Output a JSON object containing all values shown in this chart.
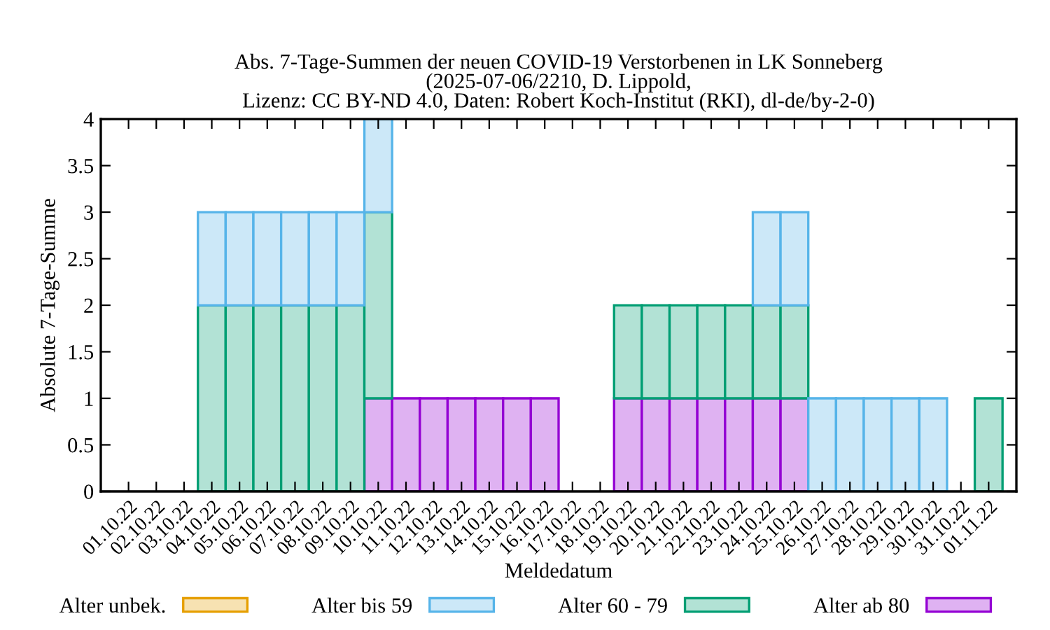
{
  "chart_data": {
    "type": "bar",
    "stacked": true,
    "title": "Abs. 7-Tage-Summen der neuen COVID-19 Verstorbenen in LK Sonneberg\n(2025-07-06/2210, D. Lippold,\nLizenz: CC BY-ND 4.0, Daten: Robert Koch-Institut (RKI), dl-de/by-2-0)",
    "xlabel": "Meldedatum",
    "ylabel": "Absolute 7-Tage-Summe",
    "categories": [
      "01.10.22",
      "02.10.22",
      "03.10.22",
      "04.10.22",
      "05.10.22",
      "06.10.22",
      "07.10.22",
      "08.10.22",
      "09.10.22",
      "10.10.22",
      "11.10.22",
      "12.10.22",
      "13.10.22",
      "14.10.22",
      "15.10.22",
      "16.10.22",
      "17.10.22",
      "18.10.22",
      "19.10.22",
      "20.10.22",
      "21.10.22",
      "22.10.22",
      "23.10.22",
      "24.10.22",
      "25.10.22",
      "26.10.22",
      "27.10.22",
      "28.10.22",
      "29.10.22",
      "30.10.22",
      "31.10.22",
      "01.11.22"
    ],
    "series": [
      {
        "name": "Alter ab 80",
        "color": "#9400d3",
        "values": [
          null,
          null,
          null,
          null,
          null,
          null,
          null,
          null,
          null,
          1,
          1,
          1,
          1,
          1,
          1,
          1,
          null,
          null,
          1,
          1,
          1,
          1,
          1,
          1,
          1,
          null,
          null,
          null,
          null,
          null,
          null,
          null
        ]
      },
      {
        "name": "Alter 60 - 79",
        "color": "#009e73",
        "values": [
          null,
          null,
          null,
          2,
          2,
          2,
          2,
          2,
          2,
          2,
          null,
          null,
          null,
          null,
          null,
          null,
          null,
          null,
          1,
          1,
          1,
          1,
          1,
          1,
          1,
          null,
          null,
          null,
          null,
          null,
          null,
          1
        ]
      },
      {
        "name": "Alter bis 59",
        "color": "#56b4e9",
        "values": [
          null,
          null,
          null,
          1,
          1,
          1,
          1,
          1,
          1,
          1,
          null,
          null,
          null,
          null,
          null,
          null,
          null,
          null,
          null,
          null,
          null,
          null,
          null,
          1,
          1,
          1,
          1,
          1,
          1,
          1,
          null,
          null
        ]
      },
      {
        "name": "Alter unbek.",
        "color": "#e69f00",
        "values": [
          null,
          null,
          null,
          null,
          null,
          null,
          null,
          null,
          null,
          null,
          null,
          null,
          null,
          null,
          null,
          null,
          null,
          null,
          null,
          null,
          null,
          null,
          null,
          null,
          null,
          null,
          null,
          null,
          null,
          null,
          null,
          null
        ]
      }
    ],
    "ylim": [
      0,
      4
    ],
    "yticks": [
      0,
      0.5,
      1,
      1.5,
      2,
      2.5,
      3,
      3.5,
      4
    ],
    "legend": "bottom",
    "grid": false
  }
}
